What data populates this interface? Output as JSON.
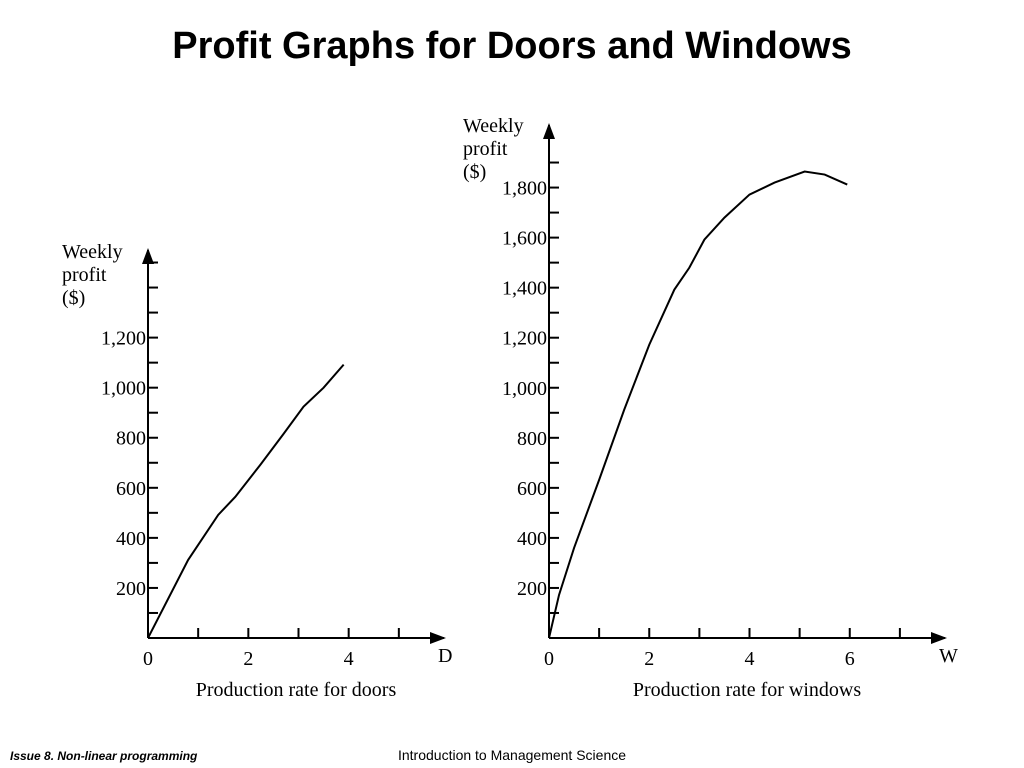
{
  "title": "Profit Graphs for Doors and Windows",
  "footer_left": "Issue 8. Non-linear programming",
  "footer_right": "Introduction to Management Science",
  "chart_data": [
    {
      "type": "line",
      "ylabel": [
        "Weekly",
        "profit",
        "($)"
      ],
      "xlabel": "Production rate for doors",
      "xvar": "D",
      "xlim": [
        0,
        5.9
      ],
      "ylim": [
        0,
        1550
      ],
      "xticks": [
        0,
        2,
        4
      ],
      "xminor": [
        1,
        3,
        5
      ],
      "yticks": [
        {
          "value": 200,
          "label": "200"
        },
        {
          "value": 400,
          "label": "400"
        },
        {
          "value": 600,
          "label": "600"
        },
        {
          "value": 800,
          "label": "800"
        },
        {
          "value": 1000,
          "label": "1,000"
        },
        {
          "value": 1200,
          "label": "1,200"
        }
      ],
      "yminor": [
        100,
        300,
        500,
        700,
        900,
        1100,
        1300,
        1400,
        1500
      ],
      "color": "#000000",
      "x": [
        0,
        0.8,
        1.4,
        1.74,
        2.24,
        2.7,
        3.1,
        3.5,
        3.9
      ],
      "values": [
        0,
        312,
        492,
        564,
        692,
        815,
        924,
        1000,
        1092
      ]
    },
    {
      "type": "line",
      "ylabel": [
        "Weekly",
        "profit",
        "($)"
      ],
      "xlabel": "Production rate for windows",
      "xvar": "W",
      "xlim": [
        0,
        7.9
      ],
      "ylim": [
        0,
        2050
      ],
      "xticks": [
        0,
        2,
        4,
        6
      ],
      "xminor": [
        1,
        3,
        5,
        7
      ],
      "yticks": [
        {
          "value": 200,
          "label": "200"
        },
        {
          "value": 400,
          "label": "400"
        },
        {
          "value": 600,
          "label": "600"
        },
        {
          "value": 800,
          "label": "800"
        },
        {
          "value": 1000,
          "label": "1,000"
        },
        {
          "value": 1200,
          "label": "1,200"
        },
        {
          "value": 1400,
          "label": "1,400"
        },
        {
          "value": 1600,
          "label": "1,600"
        },
        {
          "value": 1800,
          "label": "1,800"
        }
      ],
      "yminor": [
        100,
        300,
        500,
        700,
        900,
        1100,
        1300,
        1500,
        1700,
        1900
      ],
      "color": "#000000",
      "x": [
        0,
        0.2,
        0.5,
        1,
        1.5,
        2,
        2.5,
        2.8,
        3.1,
        3.5,
        4,
        4.5,
        5.1,
        5.5,
        5.95
      ],
      "values": [
        0,
        172,
        360,
        632,
        912,
        1172,
        1392,
        1480,
        1592,
        1680,
        1772,
        1820,
        1864,
        1852,
        1812
      ]
    }
  ]
}
